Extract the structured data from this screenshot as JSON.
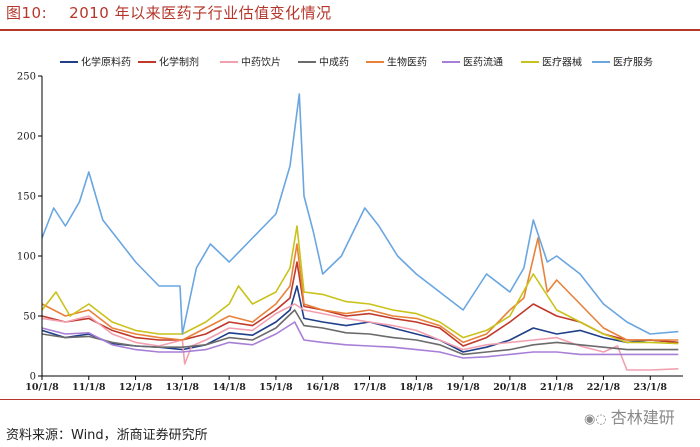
{
  "figure": {
    "label": "图10:",
    "title": "2010 年以来医药子行业估值变化情况",
    "source": "资料来源：Wind，浙商证券研究所",
    "watermark": "杏林建研",
    "watermark_icon": "wechat-icon"
  },
  "colors": {
    "title": "#b5362a",
    "axis": "#000000"
  },
  "chart_data": {
    "type": "line",
    "title": "",
    "xlabel": "",
    "ylabel": "",
    "ylim": [
      0,
      250
    ],
    "yticks": [
      0,
      50,
      100,
      150,
      200,
      250
    ],
    "xlim": [
      2010.0,
      2023.7
    ],
    "xticks": [
      {
        "value": 2010.0,
        "label": "10/1/8"
      },
      {
        "value": 2011.0,
        "label": "11/1/8"
      },
      {
        "value": 2012.0,
        "label": "12/1/8"
      },
      {
        "value": 2013.0,
        "label": "13/1/8"
      },
      {
        "value": 2014.0,
        "label": "14/1/8"
      },
      {
        "value": 2015.0,
        "label": "15/1/8"
      },
      {
        "value": 2016.0,
        "label": "16/1/8"
      },
      {
        "value": 2017.0,
        "label": "17/1/8"
      },
      {
        "value": 2018.0,
        "label": "18/1/8"
      },
      {
        "value": 2019.0,
        "label": "19/1/8"
      },
      {
        "value": 2020.0,
        "label": "20/1/8"
      },
      {
        "value": 2021.0,
        "label": "21/1/8"
      },
      {
        "value": 2022.0,
        "label": "22/1/8"
      },
      {
        "value": 2023.0,
        "label": "23/1/8"
      }
    ],
    "grid": false,
    "legend": "top",
    "series": [
      {
        "name": "化学原料药",
        "color": "#1f3f8a",
        "x": [
          2010.0,
          2010.5,
          2011.0,
          2011.5,
          2012.0,
          2012.5,
          2013.0,
          2013.5,
          2014.0,
          2014.5,
          2015.0,
          2015.3,
          2015.45,
          2015.6,
          2016.0,
          2016.5,
          2017.0,
          2017.5,
          2018.0,
          2018.5,
          2019.0,
          2019.5,
          2020.0,
          2020.5,
          2021.0,
          2021.5,
          2022.0,
          2022.5,
          2023.0,
          2023.6
        ],
        "y": [
          38,
          32,
          35,
          27,
          25,
          24,
          22,
          26,
          36,
          34,
          45,
          55,
          75,
          48,
          45,
          42,
          45,
          40,
          35,
          30,
          20,
          24,
          30,
          40,
          35,
          38,
          32,
          28,
          30,
          28
        ]
      },
      {
        "name": "化学制剂",
        "color": "#c0392b",
        "x": [
          2010.0,
          2010.5,
          2011.0,
          2011.5,
          2012.0,
          2012.5,
          2013.0,
          2013.5,
          2014.0,
          2014.5,
          2015.0,
          2015.3,
          2015.45,
          2015.6,
          2016.0,
          2016.5,
          2017.0,
          2017.5,
          2018.0,
          2018.5,
          2019.0,
          2019.5,
          2020.0,
          2020.5,
          2021.0,
          2021.5,
          2022.0,
          2022.5,
          2023.0,
          2023.6
        ],
        "y": [
          50,
          45,
          48,
          38,
          32,
          30,
          30,
          35,
          45,
          42,
          55,
          65,
          95,
          58,
          55,
          50,
          52,
          48,
          45,
          40,
          25,
          32,
          45,
          60,
          50,
          45,
          35,
          30,
          30,
          28
        ]
      },
      {
        "name": "中药饮片",
        "color": "#f2a0b0",
        "x": [
          2010.0,
          2010.5,
          2011.0,
          2011.5,
          2012.0,
          2012.5,
          2013.0,
          2013.05,
          2013.2,
          2013.5,
          2014.0,
          2014.5,
          2015.0,
          2015.4,
          2015.6,
          2016.0,
          2016.5,
          2017.0,
          2017.5,
          2018.0,
          2018.5,
          2019.0,
          2019.5,
          2020.0,
          2020.5,
          2021.0,
          2021.5,
          2022.0,
          2022.3,
          2022.5,
          2023.0,
          2023.6
        ],
        "y": [
          48,
          45,
          50,
          35,
          28,
          25,
          30,
          10,
          25,
          30,
          40,
          38,
          52,
          60,
          55,
          52,
          48,
          45,
          42,
          38,
          30,
          22,
          26,
          28,
          30,
          32,
          25,
          20,
          25,
          5,
          5,
          6
        ]
      },
      {
        "name": "中成药",
        "color": "#6b6b6b",
        "x": [
          2010.0,
          2010.5,
          2011.0,
          2011.5,
          2012.0,
          2012.5,
          2013.0,
          2013.5,
          2014.0,
          2014.5,
          2015.0,
          2015.4,
          2015.6,
          2016.0,
          2016.5,
          2017.0,
          2017.5,
          2018.0,
          2018.5,
          2019.0,
          2019.5,
          2020.0,
          2020.5,
          2021.0,
          2021.5,
          2022.0,
          2022.5,
          2023.0,
          2023.6
        ],
        "y": [
          35,
          32,
          33,
          28,
          25,
          24,
          24,
          26,
          32,
          30,
          40,
          55,
          42,
          40,
          36,
          35,
          32,
          30,
          26,
          18,
          20,
          22,
          26,
          28,
          26,
          24,
          22,
          22,
          22
        ]
      },
      {
        "name": "生物医药",
        "color": "#e8823a",
        "x": [
          2010.0,
          2010.5,
          2011.0,
          2011.5,
          2012.0,
          2012.5,
          2013.0,
          2013.5,
          2014.0,
          2014.5,
          2015.0,
          2015.3,
          2015.45,
          2015.6,
          2016.0,
          2016.5,
          2017.0,
          2017.5,
          2018.0,
          2018.5,
          2019.0,
          2019.5,
          2020.0,
          2020.3,
          2020.6,
          2020.8,
          2021.0,
          2021.5,
          2022.0,
          2022.5,
          2023.0,
          2023.6
        ],
        "y": [
          60,
          50,
          55,
          40,
          35,
          32,
          30,
          40,
          50,
          45,
          60,
          75,
          110,
          60,
          55,
          52,
          55,
          50,
          48,
          42,
          28,
          35,
          55,
          65,
          115,
          70,
          80,
          60,
          40,
          30,
          30,
          30
        ]
      },
      {
        "name": "医药流通",
        "color": "#a87fd6",
        "x": [
          2010.0,
          2010.5,
          2011.0,
          2011.5,
          2012.0,
          2012.5,
          2013.0,
          2013.5,
          2014.0,
          2014.5,
          2015.0,
          2015.4,
          2015.6,
          2016.0,
          2016.5,
          2017.0,
          2017.5,
          2018.0,
          2018.5,
          2019.0,
          2019.5,
          2020.0,
          2020.5,
          2021.0,
          2021.5,
          2022.0,
          2022.5,
          2023.0,
          2023.6
        ],
        "y": [
          40,
          35,
          36,
          26,
          22,
          20,
          20,
          22,
          28,
          26,
          35,
          45,
          30,
          28,
          26,
          25,
          24,
          22,
          20,
          15,
          16,
          18,
          20,
          20,
          18,
          18,
          18,
          18,
          18
        ]
      },
      {
        "name": "医疗器械",
        "color": "#c9c21a",
        "x": [
          2010.0,
          2010.3,
          2010.6,
          2011.0,
          2011.5,
          2012.0,
          2012.5,
          2013.0,
          2013.5,
          2014.0,
          2014.2,
          2014.5,
          2015.0,
          2015.3,
          2015.45,
          2015.6,
          2016.0,
          2016.5,
          2017.0,
          2017.5,
          2018.0,
          2018.5,
          2019.0,
          2019.5,
          2020.0,
          2020.5,
          2021.0,
          2021.5,
          2022.0,
          2022.5,
          2023.0,
          2023.6
        ],
        "y": [
          55,
          70,
          50,
          60,
          45,
          38,
          35,
          35,
          45,
          60,
          75,
          60,
          70,
          90,
          125,
          70,
          68,
          62,
          60,
          55,
          52,
          45,
          32,
          38,
          50,
          85,
          55,
          45,
          35,
          28,
          28,
          27
        ]
      },
      {
        "name": "医疗服务",
        "color": "#6aa6e0",
        "x": [
          2010.0,
          2010.25,
          2010.5,
          2010.8,
          2011.0,
          2011.3,
          2011.6,
          2012.0,
          2012.5,
          2012.95,
          2013.0,
          2013.3,
          2013.6,
          2014.0,
          2014.5,
          2015.0,
          2015.3,
          2015.5,
          2015.6,
          2015.8,
          2016.0,
          2016.4,
          2016.9,
          2017.2,
          2017.6,
          2018.0,
          2018.5,
          2019.0,
          2019.5,
          2020.0,
          2020.3,
          2020.5,
          2020.8,
          2021.0,
          2021.5,
          2022.0,
          2022.5,
          2023.0,
          2023.6
        ],
        "y": [
          115,
          140,
          125,
          145,
          170,
          130,
          115,
          95,
          75,
          75,
          35,
          90,
          110,
          95,
          115,
          135,
          175,
          235,
          150,
          120,
          85,
          100,
          140,
          125,
          100,
          85,
          70,
          55,
          85,
          70,
          90,
          130,
          95,
          100,
          85,
          60,
          45,
          35,
          37
        ]
      }
    ]
  }
}
